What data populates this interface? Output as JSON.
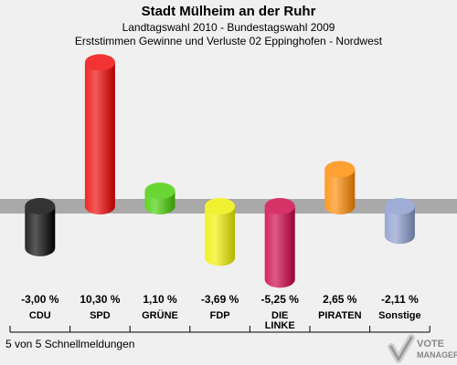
{
  "title": "Stadt Mülheim an der Ruhr",
  "subtitle": "Landtagswahl 2010 - Bundestagswahl 2009",
  "subtitle2": "Erststimmen Gewinne und Verluste 02 Eppinghofen - Nordwest",
  "footer": "5 von 5 Schnellmeldungen",
  "logo": {
    "line1": "VOTE",
    "line2": "MANAGER"
  },
  "chart_data": {
    "type": "bar",
    "title": "Stadt Mülheim an der Ruhr",
    "categories": [
      "CDU",
      "SPD",
      "GRÜNE",
      "FDP",
      "DIE LINKE",
      "PIRATEN",
      "Sonstige"
    ],
    "category_lines": [
      [
        "CDU"
      ],
      [
        "SPD"
      ],
      [
        "GRÜNE"
      ],
      [
        "FDP"
      ],
      [
        "DIE",
        "LINKE"
      ],
      [
        "PIRATEN"
      ],
      [
        "Sonstige"
      ]
    ],
    "values": [
      -3.0,
      10.3,
      1.1,
      -3.69,
      -5.25,
      2.65,
      -2.11
    ],
    "value_labels": [
      "-3,00 %",
      "10,30 %",
      "1,10 %",
      "-3,69 %",
      "-5,25 %",
      "2,65 %",
      "-2,11 %"
    ],
    "colors": [
      "#000000",
      "#ee0000",
      "#44cc00",
      "#eeee00",
      "#cc0044",
      "#ff8800",
      "#8899cc"
    ],
    "ylim": [
      -6,
      11
    ],
    "grid": false,
    "legend": "none"
  }
}
